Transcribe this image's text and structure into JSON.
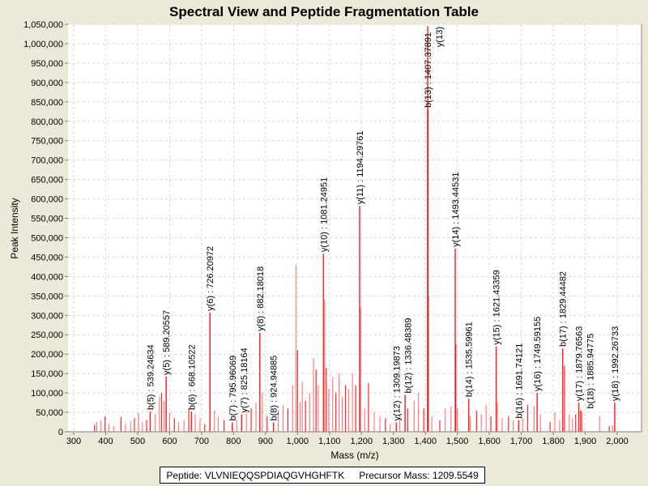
{
  "chart_data": {
    "type": "bar",
    "title": "Spectral View and Peptide Fragmentation Table",
    "xlabel": "Mass (m/z)",
    "ylabel": "Peak Intensity",
    "xlim": [
      282,
      2078
    ],
    "ylim": [
      0,
      1070000
    ],
    "xticks": [
      300,
      400,
      500,
      600,
      700,
      800,
      900,
      1000,
      1100,
      1200,
      1300,
      1400,
      1500,
      1600,
      1700,
      1800,
      1900,
      2000
    ],
    "xtick_labels": [
      "300",
      "400",
      "500",
      "600",
      "700",
      "800",
      "900",
      "1,000",
      "1,100",
      "1,200",
      "1,300",
      "1,400",
      "1,500",
      "1,600",
      "1,700",
      "1,800",
      "1,900",
      "2,000"
    ],
    "yticks": [
      0,
      50000,
      100000,
      150000,
      200000,
      250000,
      300000,
      350000,
      400000,
      450000,
      500000,
      550000,
      600000,
      650000,
      700000,
      750000,
      800000,
      850000,
      900000,
      950000,
      1000000,
      1050000
    ],
    "ytick_labels": [
      "0",
      "50,000",
      "100,000",
      "150,000",
      "200,000",
      "250,000",
      "300,000",
      "350,000",
      "400,000",
      "450,000",
      "500,000",
      "550,000",
      "600,000",
      "650,000",
      "700,000",
      "750,000",
      "800,000",
      "850,000",
      "900,000",
      "950,000",
      "1,000,000",
      "1,050,000"
    ],
    "grid": true,
    "peak_color": "#FF0000",
    "labeled_peaks": [
      {
        "mz": 539.24634,
        "intensity": 52000,
        "label": "b(5) : 539.24634"
      },
      {
        "mz": 589.20557,
        "intensity": 142000,
        "label": "y(5) : 589.20557"
      },
      {
        "mz": 668.10522,
        "intensity": 52000,
        "label": "b(6) : 668.10522"
      },
      {
        "mz": 726.20972,
        "intensity": 307000,
        "label": "y(6) : 726.20972"
      },
      {
        "mz": 795.96069,
        "intensity": 24000,
        "label": "b(7) : 795.96069"
      },
      {
        "mz": 825.18164,
        "intensity": 45000,
        "label": "y(7) : 825.18164"
      },
      {
        "mz": 882.18018,
        "intensity": 255000,
        "label": "y(8) : 882.18018"
      },
      {
        "mz": 924.94885,
        "intensity": 24000,
        "label": "b(8) : 924.94885"
      },
      {
        "mz": 1081.24951,
        "intensity": 459000,
        "label": "y(10) : 1081.24951"
      },
      {
        "mz": 1194.29761,
        "intensity": 582000,
        "label": "y(11) : 1194.29761"
      },
      {
        "mz": 1309.19873,
        "intensity": 24000,
        "label": "y(12) : 1309.19873"
      },
      {
        "mz": 1336.48389,
        "intensity": 95000,
        "label": "b(12) : 1336.48389"
      },
      {
        "mz": 1407.37891,
        "intensity": 831000,
        "label": "b(13) : 1407.37891"
      },
      {
        "mz": 1407.4,
        "intensity": 1045000,
        "label": "y(13)"
      },
      {
        "mz": 1493.44531,
        "intensity": 472000,
        "label": "y(14) : 1493.44531"
      },
      {
        "mz": 1535.59961,
        "intensity": 85000,
        "label": "b(14) : 1535.59961"
      },
      {
        "mz": 1621.43359,
        "intensity": 220000,
        "label": "y(15) : 1621.43359"
      },
      {
        "mz": 1691.74121,
        "intensity": 30000,
        "label": "b(16) : 1691.74121"
      },
      {
        "mz": 1749.59155,
        "intensity": 100000,
        "label": "y(16) : 1749.59155"
      },
      {
        "mz": 1829.44482,
        "intensity": 215000,
        "label": "b(17) : 1829.44482"
      },
      {
        "mz": 1879.76563,
        "intensity": 75000,
        "label": "y(17) : 1879.76563"
      },
      {
        "mz": 1885.94775,
        "intensity": 55000,
        "label": "b(18) : 1885.94775"
      },
      {
        "mz": 1992.26733,
        "intensity": 75000,
        "label": "y(18) : 1992.26733"
      }
    ],
    "unlabeled_peaks": [
      [
        365,
        18000
      ],
      [
        372,
        25000
      ],
      [
        385,
        30000
      ],
      [
        398,
        40000
      ],
      [
        410,
        22000
      ],
      [
        425,
        15000
      ],
      [
        448,
        38000
      ],
      [
        462,
        20000
      ],
      [
        478,
        28000
      ],
      [
        490,
        35000
      ],
      [
        503,
        48000
      ],
      [
        515,
        25000
      ],
      [
        528,
        30000
      ],
      [
        555,
        45000
      ],
      [
        568,
        90000
      ],
      [
        575,
        100000
      ],
      [
        582,
        80000
      ],
      [
        600,
        50000
      ],
      [
        615,
        35000
      ],
      [
        628,
        25000
      ],
      [
        645,
        30000
      ],
      [
        660,
        60000
      ],
      [
        680,
        45000
      ],
      [
        695,
        35000
      ],
      [
        710,
        20000
      ],
      [
        740,
        55000
      ],
      [
        752,
        40000
      ],
      [
        770,
        30000
      ],
      [
        810,
        30000
      ],
      [
        840,
        50000
      ],
      [
        855,
        60000
      ],
      [
        870,
        75000
      ],
      [
        890,
        100000
      ],
      [
        905,
        40000
      ],
      [
        940,
        55000
      ],
      [
        955,
        70000
      ],
      [
        970,
        60000
      ],
      [
        985,
        120000
      ],
      [
        995,
        430000
      ],
      [
        1000,
        210000
      ],
      [
        1008,
        75000
      ],
      [
        1015,
        130000
      ],
      [
        1025,
        80000
      ],
      [
        1038,
        100000
      ],
      [
        1050,
        190000
      ],
      [
        1058,
        160000
      ],
      [
        1065,
        120000
      ],
      [
        1085,
        340000
      ],
      [
        1090,
        165000
      ],
      [
        1098,
        110000
      ],
      [
        1110,
        140000
      ],
      [
        1120,
        100000
      ],
      [
        1130,
        150000
      ],
      [
        1140,
        90000
      ],
      [
        1150,
        120000
      ],
      [
        1160,
        110000
      ],
      [
        1172,
        150000
      ],
      [
        1182,
        120000
      ],
      [
        1197,
        320000
      ],
      [
        1210,
        60000
      ],
      [
        1222,
        125000
      ],
      [
        1240,
        50000
      ],
      [
        1258,
        40000
      ],
      [
        1275,
        35000
      ],
      [
        1290,
        20000
      ],
      [
        1320,
        45000
      ],
      [
        1345,
        60000
      ],
      [
        1365,
        80000
      ],
      [
        1378,
        100000
      ],
      [
        1395,
        60000
      ],
      [
        1410,
        350000
      ],
      [
        1420,
        40000
      ],
      [
        1445,
        30000
      ],
      [
        1462,
        60000
      ],
      [
        1480,
        65000
      ],
      [
        1495,
        225000
      ],
      [
        1500,
        60000
      ],
      [
        1540,
        40000
      ],
      [
        1560,
        55000
      ],
      [
        1575,
        45000
      ],
      [
        1590,
        70000
      ],
      [
        1605,
        40000
      ],
      [
        1625,
        75000
      ],
      [
        1640,
        35000
      ],
      [
        1660,
        40000
      ],
      [
        1675,
        30000
      ],
      [
        1705,
        35000
      ],
      [
        1720,
        70000
      ],
      [
        1740,
        65000
      ],
      [
        1760,
        45000
      ],
      [
        1790,
        25000
      ],
      [
        1805,
        50000
      ],
      [
        1820,
        30000
      ],
      [
        1835,
        170000
      ],
      [
        1850,
        45000
      ],
      [
        1860,
        35000
      ],
      [
        1870,
        45000
      ],
      [
        1890,
        50000
      ],
      [
        1945,
        40000
      ],
      [
        1975,
        15000
      ],
      [
        1985,
        17000
      ]
    ]
  },
  "legend": {
    "peptide": "Peptide: VLVNIEQQSPDIAQGVHGHFTK",
    "precursor": "Precursor Mass: 1209.5549"
  }
}
